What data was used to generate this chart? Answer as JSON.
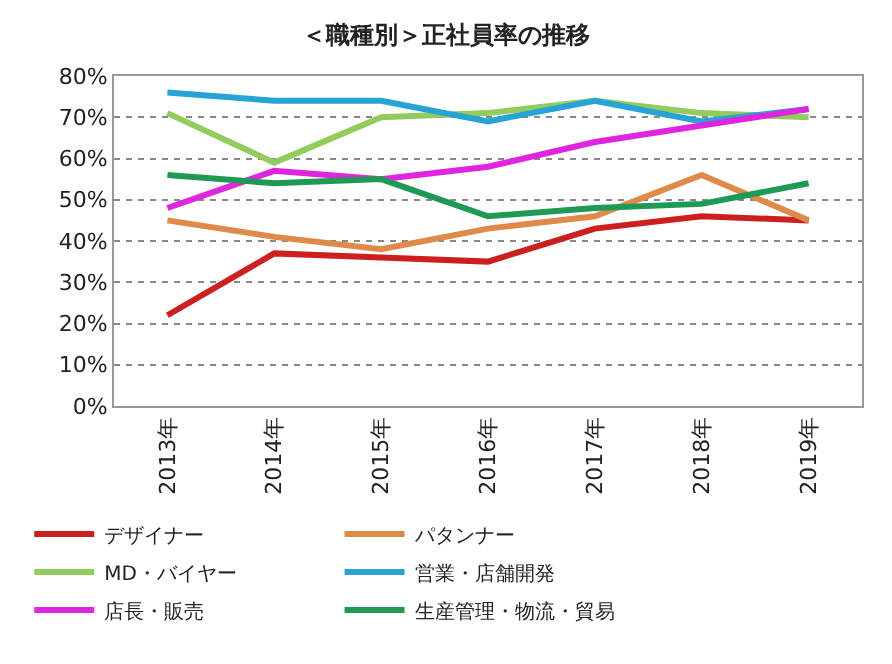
{
  "chart_data": {
    "type": "line",
    "title": "＜職種別＞正社員率の推移",
    "categories": [
      "2013年",
      "2014年",
      "2015年",
      "2016年",
      "2017年",
      "2018年",
      "2019年"
    ],
    "series": [
      {
        "name": "デザイナー",
        "color": "#cc1f1f",
        "values": [
          22,
          37,
          36,
          35,
          43,
          46,
          45
        ]
      },
      {
        "name": "パタンナー",
        "color": "#e08a4a",
        "values": [
          45,
          41,
          38,
          43,
          46,
          56,
          45
        ]
      },
      {
        "name": "MD・バイヤー",
        "color": "#92cc5c",
        "values": [
          71,
          59,
          70,
          71,
          74,
          71,
          70
        ]
      },
      {
        "name": "営業・店舗開発",
        "color": "#27a3d6",
        "values": [
          76,
          74,
          74,
          69,
          74,
          69,
          72
        ]
      },
      {
        "name": "店長・販売",
        "color": "#e025e0",
        "values": [
          48,
          57,
          55,
          58,
          64,
          68,
          72
        ]
      },
      {
        "name": "生産管理・物流・貿易",
        "color": "#1f9a55",
        "values": [
          56,
          54,
          55,
          46,
          48,
          49,
          54
        ]
      }
    ],
    "ylim": [
      0,
      80
    ],
    "yticks": [
      {
        "value": 0,
        "label": "0%"
      },
      {
        "value": 10,
        "label": "10%"
      },
      {
        "value": 20,
        "label": "20%"
      },
      {
        "value": 30,
        "label": "30%"
      },
      {
        "value": 40,
        "label": "40%"
      },
      {
        "value": 50,
        "label": "50%"
      },
      {
        "value": 60,
        "label": "60%"
      },
      {
        "value": 70,
        "label": "70%"
      },
      {
        "value": 80,
        "label": "80%"
      }
    ],
    "grid": "y",
    "legend": "bottom",
    "marker": "none",
    "line_style": "solid"
  }
}
